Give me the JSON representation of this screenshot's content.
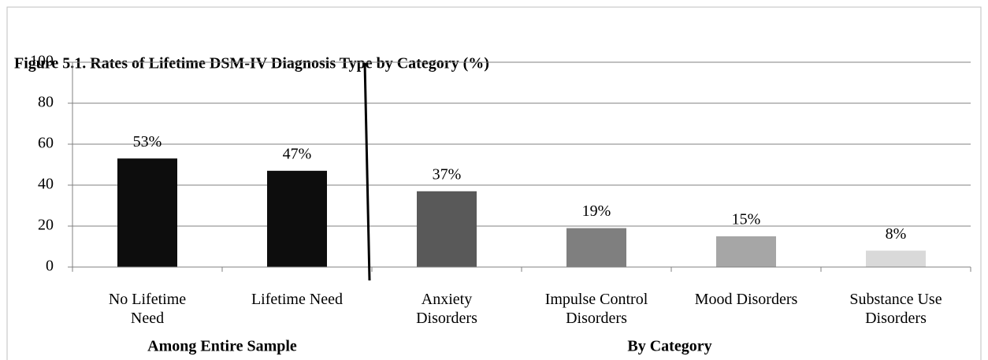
{
  "chart_data": {
    "type": "bar",
    "title": "Figure 5.1. Rates of Lifetime DSM-IV Diagnosis Type by Category (%)",
    "categories": [
      "No Lifetime Need",
      "Lifetime Need",
      "Anxiety Disorders",
      "Impulse Control Disorders",
      "Mood Disorders",
      "Substance Use Disorders"
    ],
    "values": [
      53,
      47,
      37,
      19,
      15,
      8
    ],
    "value_labels": [
      "53%",
      "47%",
      "37%",
      "19%",
      "15%",
      "8%"
    ],
    "colors": [
      "#0d0d0d",
      "#0d0d0d",
      "#595959",
      "#7f7f7f",
      "#a6a6a6",
      "#d9d9d9"
    ],
    "groups": [
      "Among Entire Sample",
      "By Category"
    ],
    "ylim": [
      0,
      100
    ],
    "yticks": [
      0,
      20,
      40,
      60,
      80,
      100
    ],
    "grid": true
  }
}
